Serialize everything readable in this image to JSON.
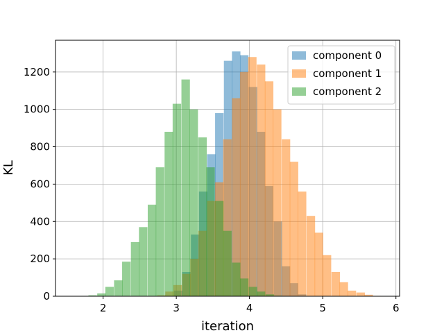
{
  "chart_data": {
    "type": "histogram",
    "xlabel": "iteration",
    "ylabel": "KL",
    "xlim": [
      1.35,
      6.05
    ],
    "ylim": [
      0,
      1370
    ],
    "xticks": [
      2,
      3,
      4,
      5,
      6
    ],
    "yticks": [
      0,
      200,
      400,
      600,
      800,
      1000,
      1200
    ],
    "grid": true,
    "legend_position": "top-right",
    "bin_width": 0.113,
    "series": [
      {
        "name": "component 0",
        "color": "#1f77b4",
        "opacity": 0.5,
        "bins": [
          [
            2.86,
            2
          ],
          [
            2.97,
            30
          ],
          [
            3.08,
            130
          ],
          [
            3.2,
            330
          ],
          [
            3.31,
            560
          ],
          [
            3.42,
            760
          ],
          [
            3.53,
            980
          ],
          [
            3.65,
            1260
          ],
          [
            3.76,
            1310
          ],
          [
            3.87,
            1290
          ],
          [
            3.99,
            1120
          ],
          [
            4.1,
            880
          ],
          [
            4.21,
            590
          ],
          [
            4.33,
            400
          ],
          [
            4.44,
            160
          ],
          [
            4.55,
            70
          ],
          [
            4.66,
            10
          ]
        ]
      },
      {
        "name": "component 1",
        "color": "#ff7f0e",
        "opacity": 0.5,
        "bins": [
          [
            2.74,
            5
          ],
          [
            2.85,
            25
          ],
          [
            2.96,
            60
          ],
          [
            3.08,
            120
          ],
          [
            3.19,
            200
          ],
          [
            3.3,
            350
          ],
          [
            3.42,
            510
          ],
          [
            3.53,
            610
          ],
          [
            3.64,
            840
          ],
          [
            3.76,
            1060
          ],
          [
            3.87,
            1200
          ],
          [
            3.98,
            1280
          ],
          [
            4.1,
            1240
          ],
          [
            4.21,
            1150
          ],
          [
            4.32,
            1000
          ],
          [
            4.44,
            840
          ],
          [
            4.55,
            720
          ],
          [
            4.66,
            560
          ],
          [
            4.78,
            430
          ],
          [
            4.89,
            340
          ],
          [
            5.0,
            220
          ],
          [
            5.12,
            130
          ],
          [
            5.23,
            75
          ],
          [
            5.34,
            30
          ],
          [
            5.46,
            20
          ],
          [
            5.57,
            8
          ],
          [
            5.68,
            2
          ]
        ]
      },
      {
        "name": "component 2",
        "color": "#2ca02c",
        "opacity": 0.5,
        "bins": [
          [
            1.69,
            2
          ],
          [
            1.8,
            5
          ],
          [
            1.92,
            15
          ],
          [
            2.03,
            50
          ],
          [
            2.15,
            85
          ],
          [
            2.26,
            185
          ],
          [
            2.38,
            290
          ],
          [
            2.49,
            370
          ],
          [
            2.61,
            490
          ],
          [
            2.72,
            690
          ],
          [
            2.84,
            880
          ],
          [
            2.95,
            1030
          ],
          [
            3.07,
            1160
          ],
          [
            3.18,
            1000
          ],
          [
            3.3,
            850
          ],
          [
            3.41,
            690
          ],
          [
            3.53,
            510
          ],
          [
            3.64,
            350
          ],
          [
            3.76,
            180
          ],
          [
            3.87,
            95
          ],
          [
            3.99,
            50
          ],
          [
            4.1,
            25
          ],
          [
            4.22,
            10
          ],
          [
            4.33,
            3
          ]
        ]
      }
    ]
  }
}
